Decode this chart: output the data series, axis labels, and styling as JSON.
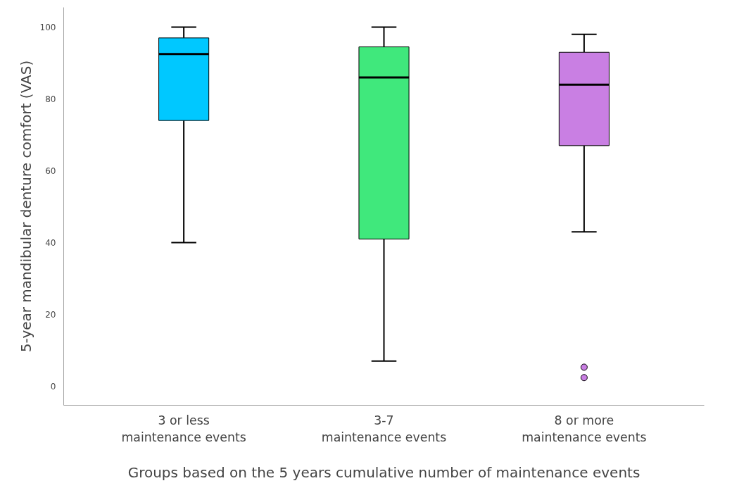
{
  "chart_data": {
    "type": "box",
    "xlabel": "Groups based on the 5 years cumulative number of maintenance events",
    "ylabel": "5-year mandibular denture comfort (VAS)",
    "categories": [
      "3 or less\nmaintenance events",
      "3-7\nmaintenance events",
      "8 or more\nmaintenance events"
    ],
    "colors": [
      "#00c8ff",
      "#40e87c",
      "#c97fe3"
    ],
    "boxes": [
      {
        "low": 40,
        "q1": 74,
        "median": 92.5,
        "q3": 97,
        "high": 100
      },
      {
        "low": 7,
        "q1": 41,
        "median": 86,
        "q3": 94.5,
        "high": 100
      },
      {
        "low": 43,
        "q1": 67,
        "median": 84,
        "q3": 93,
        "high": 98,
        "outliers": [
          5.3,
          2.4
        ]
      }
    ],
    "ylim": [
      -5.3,
      105.5
    ],
    "yticks": [
      0,
      20,
      40,
      60,
      80,
      100
    ],
    "grid": false
  }
}
